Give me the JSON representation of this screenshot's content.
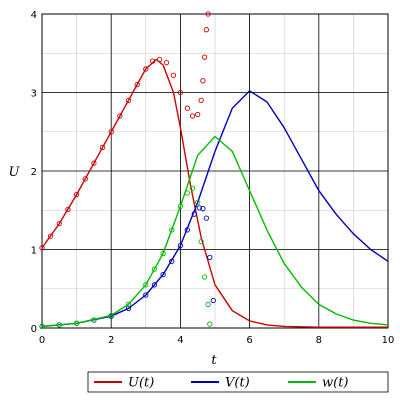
{
  "chart_data": {
    "type": "line",
    "xlabel": "t",
    "ylabel": "U",
    "xlim": [
      0,
      10
    ],
    "ylim": [
      0,
      4
    ],
    "x_ticks": [
      "0",
      "2",
      "4",
      "6",
      "8",
      "10"
    ],
    "y_ticks": [
      "0",
      "1",
      "2",
      "3",
      "4"
    ],
    "grid": true,
    "legend_position": "bottom",
    "series": [
      {
        "name": "U(t)",
        "style": "line",
        "color": "#cc0000",
        "x": [
          0,
          0.5,
          1,
          1.5,
          2,
          2.5,
          3,
          3.3,
          3.5,
          3.8,
          4,
          4.3,
          4.6,
          5,
          5.5,
          6,
          6.5,
          7,
          8,
          9,
          10
        ],
        "y": [
          1.02,
          1.33,
          1.7,
          2.1,
          2.5,
          2.9,
          3.3,
          3.42,
          3.35,
          3.0,
          2.55,
          1.8,
          1.15,
          0.55,
          0.22,
          0.09,
          0.04,
          0.02,
          0.01,
          0.01,
          0.01
        ]
      },
      {
        "name": "V(t)",
        "style": "line",
        "color": "#0000bb",
        "x": [
          0,
          1,
          2,
          2.5,
          3,
          3.5,
          4,
          4.5,
          5,
          5.5,
          6,
          6.5,
          7,
          7.5,
          8,
          8.5,
          9,
          9.5,
          10
        ],
        "y": [
          0.02,
          0.06,
          0.15,
          0.25,
          0.42,
          0.68,
          1.05,
          1.6,
          2.25,
          2.8,
          3.02,
          2.88,
          2.55,
          2.15,
          1.75,
          1.45,
          1.2,
          1.0,
          0.85
        ]
      },
      {
        "name": "w(t)",
        "style": "line",
        "color": "#00bb00",
        "x": [
          0,
          1,
          2,
          2.5,
          3,
          3.5,
          4,
          4.5,
          5,
          5.5,
          6,
          6.5,
          7,
          7.5,
          8,
          8.5,
          9,
          9.5,
          10
        ],
        "y": [
          0.02,
          0.06,
          0.16,
          0.3,
          0.55,
          0.95,
          1.55,
          2.2,
          2.44,
          2.25,
          1.75,
          1.25,
          0.82,
          0.52,
          0.3,
          0.18,
          0.1,
          0.06,
          0.04
        ]
      },
      {
        "style": "points",
        "color": "#cc0000",
        "x": [
          0,
          0.25,
          0.5,
          0.75,
          1,
          1.25,
          1.5,
          1.75,
          2,
          2.25,
          2.5,
          2.75,
          3,
          3.2,
          3.4,
          3.6,
          3.8,
          4,
          4.2,
          4.35,
          4.5,
          4.6,
          4.65,
          4.7,
          4.75,
          4.8
        ],
        "y": [
          1.02,
          1.17,
          1.33,
          1.51,
          1.7,
          1.9,
          2.1,
          2.3,
          2.5,
          2.7,
          2.9,
          3.1,
          3.3,
          3.4,
          3.42,
          3.38,
          3.22,
          3.0,
          2.8,
          2.7,
          2.72,
          2.9,
          3.15,
          3.45,
          3.8,
          4.0
        ]
      },
      {
        "style": "points",
        "color": "#0000bb",
        "x": [
          0,
          0.5,
          1,
          1.5,
          2,
          2.5,
          3,
          3.25,
          3.5,
          3.75,
          4,
          4.2,
          4.4,
          4.55,
          4.65,
          4.75,
          4.85,
          4.95
        ],
        "y": [
          0.02,
          0.04,
          0.06,
          0.1,
          0.15,
          0.25,
          0.42,
          0.55,
          0.68,
          0.85,
          1.05,
          1.25,
          1.45,
          1.53,
          1.52,
          1.4,
          0.9,
          0.35
        ]
      },
      {
        "style": "points",
        "color": "#00bb00",
        "x": [
          0,
          0.5,
          1,
          1.5,
          2,
          2.5,
          3,
          3.25,
          3.5,
          3.75,
          4,
          4.2,
          4.35,
          4.5,
          4.6,
          4.7,
          4.8,
          4.85
        ],
        "y": [
          0.02,
          0.04,
          0.06,
          0.1,
          0.16,
          0.3,
          0.55,
          0.75,
          0.95,
          1.25,
          1.55,
          1.72,
          1.78,
          1.6,
          1.1,
          0.65,
          0.3,
          0.05
        ]
      }
    ]
  }
}
